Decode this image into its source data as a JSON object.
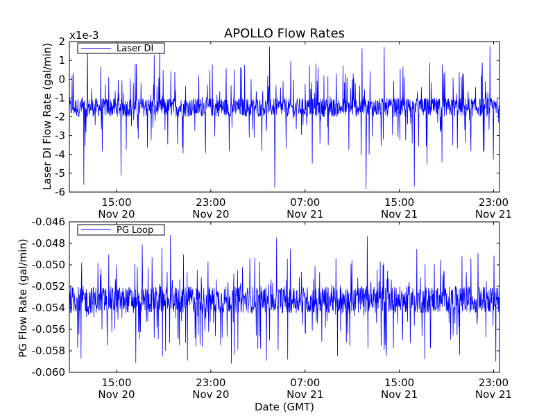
{
  "title": "APOLLO Flow Rates",
  "xlabel": "Date (GMT)",
  "chart_data": [
    {
      "type": "line",
      "title": "APOLLO Flow Rates",
      "ylabel": "Laser DI Flow Rate (gal/min)",
      "offset_text": "x1e-3",
      "xlim": [
        "2012-11-20 11:00",
        "2012-11-21 23:30"
      ],
      "ylim": [
        -6,
        2
      ],
      "y_ticks": [
        "2",
        "1",
        "0",
        "-1",
        "-2",
        "-3",
        "-4",
        "-5",
        "-6"
      ],
      "x_ticks": [
        {
          "time": "15:00",
          "date": "Nov 20"
        },
        {
          "time": "23:00",
          "date": "Nov 20"
        },
        {
          "time": "07:00",
          "date": "Nov 21"
        },
        {
          "time": "15:00",
          "date": "Nov 21"
        },
        {
          "time": "23:00",
          "date": "Nov 21"
        }
      ],
      "legend_position": "top-left",
      "grid": false,
      "color": "#0000ff",
      "series": [
        {
          "name": "Laser DI",
          "baseline_band": [
            -2,
            -1
          ],
          "typical_range": [
            -4,
            1
          ],
          "observed_range": [
            -6,
            2
          ]
        }
      ]
    },
    {
      "type": "line",
      "ylabel": "PG Flow Rate (gal/min)",
      "xlim": [
        "2012-11-20 11:00",
        "2012-11-21 23:30"
      ],
      "ylim": [
        -0.06,
        -0.046
      ],
      "y_ticks": [
        "-0.046",
        "-0.048",
        "-0.050",
        "-0.052",
        "-0.054",
        "-0.056",
        "-0.058",
        "-0.060"
      ],
      "x_ticks": [
        {
          "time": "15:00",
          "date": "Nov 20"
        },
        {
          "time": "23:00",
          "date": "Nov 20"
        },
        {
          "time": "07:00",
          "date": "Nov 21"
        },
        {
          "time": "15:00",
          "date": "Nov 21"
        },
        {
          "time": "23:00",
          "date": "Nov 21"
        }
      ],
      "xlabel": "Date (GMT)",
      "legend_position": "top-left",
      "grid": false,
      "color": "#0000ff",
      "series": [
        {
          "name": "PG Loop",
          "baseline_band": [
            -0.0545,
            -0.052
          ],
          "typical_range": [
            -0.058,
            -0.049
          ],
          "observed_range": [
            -0.0592,
            -0.0471
          ]
        }
      ]
    }
  ]
}
